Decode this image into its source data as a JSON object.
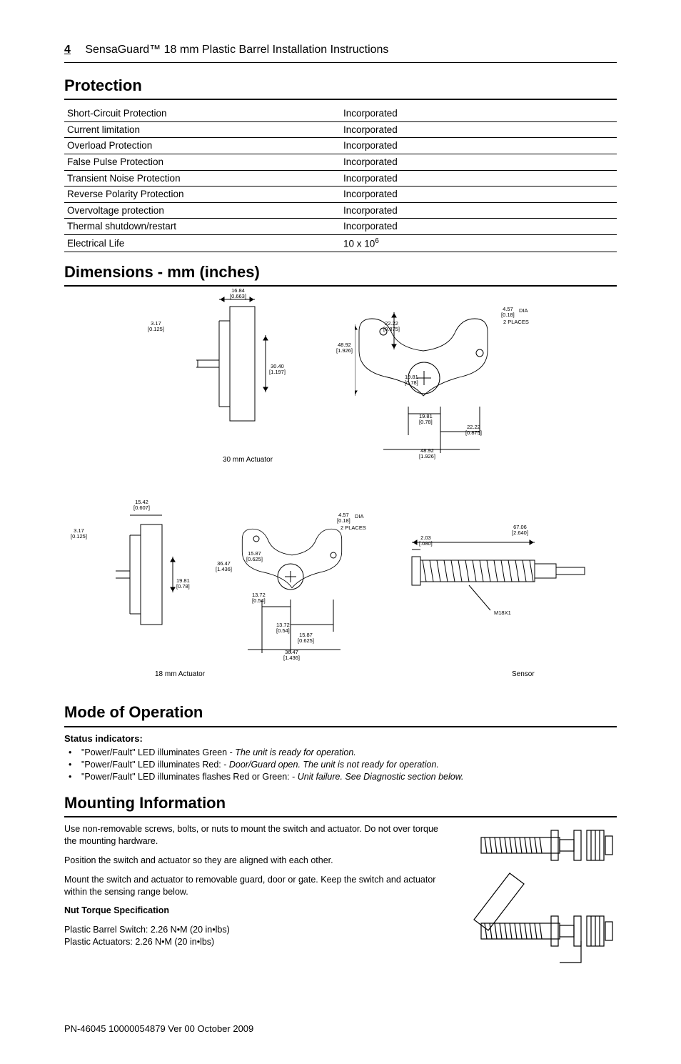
{
  "header": {
    "page_number": "4",
    "title": "SensaGuard™ 18 mm Plastic Barrel Installation Instructions"
  },
  "protection": {
    "heading": "Protection",
    "rows": [
      {
        "label": "Short-Circuit Protection",
        "value": "Incorporated"
      },
      {
        "label": "Current limitation",
        "value": "Incorporated"
      },
      {
        "label": "Overload Protection",
        "value": "Incorporated"
      },
      {
        "label": "False Pulse Protection",
        "value": "Incorporated"
      },
      {
        "label": "Transient Noise Protection",
        "value": "Incorporated"
      },
      {
        "label": "Reverse Polarity Protection",
        "value": "Incorporated"
      },
      {
        "label": "Overvoltage protection",
        "value": "Incorporated"
      },
      {
        "label": "Thermal shutdown/restart",
        "value": "Incorporated"
      },
      {
        "label": "Electrical Life",
        "value": "10 x 10⁶"
      }
    ]
  },
  "dimensions": {
    "heading": "Dimensions - mm (inches)",
    "labels": {
      "l_317": "3.17\n[0.125]",
      "l_1684": "16.84\n[0.663]",
      "l_3040": "30.40\n[1.197]",
      "l_4892": "48.92\n[1.926]",
      "l_2222": "22.22\n[0.875]",
      "l_1981": "19.81\n[0.78]",
      "l_457": "4.57\n[0.18]",
      "dia": "DIA",
      "places2": "2 PLACES",
      "l_4892b": "48.92\n[1.926]",
      "l_1542": "15.42\n[0.607]",
      "l_3647": "36.47\n[1.436]",
      "l_1587": "15.87\n[0.625]",
      "l_1372": "13.72\n[0.54]",
      "l_6706": "67.06\n[2.640]",
      "l_203": "2.03\n[.080]",
      "m18": "M18X1",
      "cap30": "30 mm Actuator",
      "cap18": "18 mm Actuator",
      "capS": "Sensor"
    }
  },
  "mode": {
    "heading": "Mode of Operation",
    "status_heading": "Status indicators:",
    "items": [
      {
        "lead": "\"Power/Fault\" LED illuminates Green - ",
        "italic": "The unit is ready for operation."
      },
      {
        "lead": "\"Power/Fault\" LED illuminates Red: - ",
        "italic": "Door/Guard open. The unit is not ready for operation."
      },
      {
        "lead": "\"Power/Fault\" LED illuminates flashes Red or Green: - ",
        "italic": "Unit failure. See Diagnostic section below."
      }
    ]
  },
  "mounting": {
    "heading": "Mounting Information",
    "p1": "Use non-removable screws, bolts, or nuts to mount the switch and actuator. Do not over torque the mounting hardware.",
    "p2": "Position the switch and actuator so they are aligned with each other.",
    "p3": "Mount the switch and actuator to removable guard, door or gate. Keep the switch and actuator within the sensing range below.",
    "nut_heading": "Nut Torque Specification",
    "p4a": "Plastic Barrel Switch: 2.26 N•M (20 in•lbs)",
    "p4b": "Plastic Actuators: 2.26 N•M (20 in•lbs)"
  },
  "footer": {
    "text": "PN-46045 10000054879  Ver 00 October 2009"
  },
  "colors": {
    "text": "#000000",
    "bg": "#ffffff",
    "rule": "#000000"
  }
}
